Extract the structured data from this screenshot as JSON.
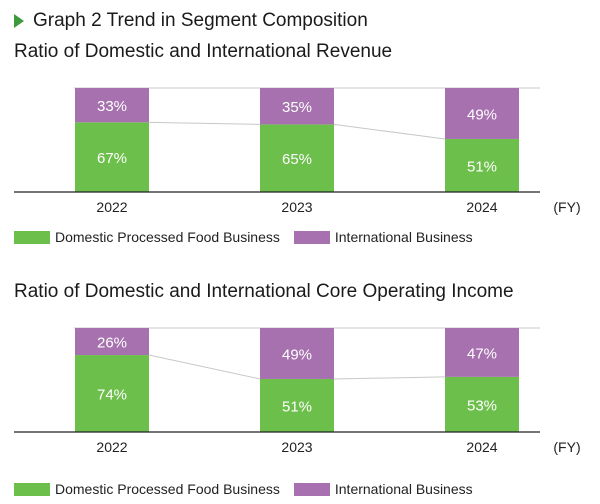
{
  "heading": "Graph 2 Trend in Segment Composition",
  "colors": {
    "domestic": "#6dbf4b",
    "international": "#a671ae",
    "accent": "#3d9a3d",
    "connector": "#c8c8c8",
    "axis": "#222222"
  },
  "legend": {
    "domestic": "Domestic Processed Food Business",
    "international": "International Business"
  },
  "chart_data": [
    {
      "type": "bar",
      "stacked": true,
      "title": "Ratio of Domestic and International Revenue",
      "categories": [
        "2022",
        "2023",
        "2024"
      ],
      "x_unit": "(FY)",
      "ylim": [
        0,
        100
      ],
      "series": [
        {
          "name": "Domestic Processed Food Business",
          "values": [
            67,
            65,
            51
          ],
          "labels": [
            "67%",
            "65%",
            "51%"
          ]
        },
        {
          "name": "International Business",
          "values": [
            33,
            35,
            49
          ],
          "labels": [
            "33%",
            "35%",
            "49%"
          ]
        }
      ]
    },
    {
      "type": "bar",
      "stacked": true,
      "title": "Ratio of Domestic and International Core Operating Income",
      "categories": [
        "2022",
        "2023",
        "2024"
      ],
      "x_unit": "(FY)",
      "ylim": [
        0,
        100
      ],
      "series": [
        {
          "name": "Domestic Processed Food Business",
          "values": [
            74,
            51,
            53
          ],
          "labels": [
            "74%",
            "51%",
            "53%"
          ]
        },
        {
          "name": "International Business",
          "values": [
            26,
            49,
            47
          ],
          "labels": [
            "26%",
            "49%",
            "47%"
          ]
        }
      ]
    }
  ]
}
